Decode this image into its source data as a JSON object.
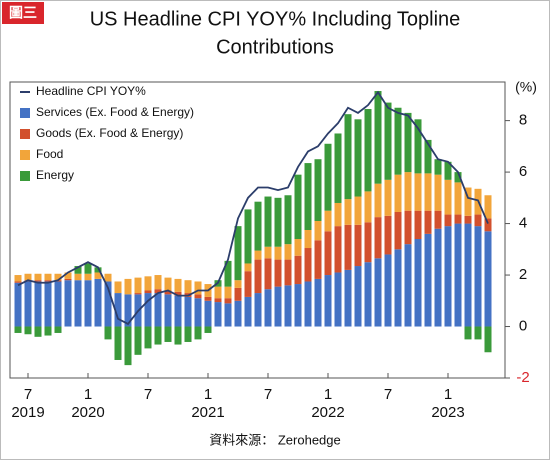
{
  "badge": "圖三",
  "source": "資料來源： Zerohedge",
  "chart_data": {
    "type": "stacked_bar_line",
    "title": [
      "US Headline CPI YOY% Including Topline",
      "Contributions"
    ],
    "y_unit_label": "(%)",
    "categories": [
      null,
      "7",
      null,
      null,
      null,
      null,
      null,
      "1",
      null,
      null,
      null,
      null,
      null,
      "7",
      null,
      null,
      null,
      null,
      null,
      "1",
      null,
      null,
      null,
      null,
      null,
      "7",
      null,
      null,
      null,
      null,
      null,
      "1",
      null,
      null,
      null,
      null,
      null,
      "7",
      null,
      null,
      null,
      null,
      null,
      "1",
      null,
      null,
      null,
      null
    ],
    "category_years": [
      null,
      "2019",
      null,
      null,
      null,
      null,
      null,
      "2020",
      null,
      null,
      null,
      null,
      null,
      null,
      null,
      null,
      null,
      null,
      null,
      "2021",
      null,
      null,
      null,
      null,
      null,
      null,
      null,
      null,
      null,
      null,
      null,
      "2022",
      null,
      null,
      null,
      null,
      null,
      null,
      null,
      null,
      null,
      null,
      null,
      "2023",
      null,
      null,
      null,
      null
    ],
    "ylim": [
      -2,
      9.5
    ],
    "yticks": [
      {
        "value": -2,
        "label": "-2"
      },
      0,
      2,
      4,
      6,
      8
    ],
    "line": {
      "name": "Headline CPI YOY%",
      "color": "#2c3e6b",
      "values": [
        1.6,
        1.8,
        1.7,
        1.7,
        1.8,
        2.1,
        2.3,
        2.5,
        2.3,
        1.5,
        0.3,
        0.1,
        0.6,
        1.0,
        1.3,
        1.4,
        1.2,
        1.2,
        1.4,
        1.4,
        1.7,
        2.6,
        4.2,
        5.0,
        5.4,
        5.4,
        5.3,
        5.4,
        6.2,
        6.8,
        7.0,
        7.5,
        7.9,
        8.5,
        8.3,
        8.6,
        9.1,
        8.5,
        8.3,
        8.2,
        7.7,
        7.1,
        6.5,
        6.4,
        6.0,
        5.0,
        4.9,
        4.0
      ]
    },
    "series": [
      {
        "name": "Services (Ex. Food & Energy)",
        "color": "#4472c4",
        "values": [
          1.7,
          1.75,
          1.75,
          1.75,
          1.75,
          1.8,
          1.8,
          1.8,
          1.85,
          1.75,
          1.3,
          1.25,
          1.25,
          1.3,
          1.3,
          1.25,
          1.2,
          1.15,
          1.1,
          1.0,
          0.95,
          0.9,
          1.0,
          1.15,
          1.3,
          1.45,
          1.55,
          1.6,
          1.65,
          1.75,
          1.85,
          2.0,
          2.1,
          2.2,
          2.35,
          2.5,
          2.65,
          2.8,
          3.0,
          3.2,
          3.4,
          3.6,
          3.8,
          3.9,
          4.0,
          4.0,
          3.9,
          3.7
        ]
      },
      {
        "name": "Goods (Ex. Food & Energy)",
        "color": "#d2502d",
        "values": [
          0.05,
          0.05,
          0.05,
          0.05,
          0.05,
          0.05,
          0.0,
          0.0,
          0.0,
          0.0,
          0.0,
          0.0,
          0.05,
          0.1,
          0.15,
          0.15,
          0.15,
          0.15,
          0.15,
          0.15,
          0.15,
          0.2,
          0.5,
          1.0,
          1.3,
          1.2,
          1.05,
          1.0,
          1.1,
          1.3,
          1.5,
          1.7,
          1.8,
          1.75,
          1.6,
          1.55,
          1.6,
          1.5,
          1.45,
          1.3,
          1.1,
          0.9,
          0.7,
          0.45,
          0.35,
          0.3,
          0.45,
          0.5
        ]
      },
      {
        "name": "Food",
        "color": "#f2a53a",
        "values": [
          0.25,
          0.25,
          0.25,
          0.25,
          0.25,
          0.25,
          0.25,
          0.25,
          0.25,
          0.3,
          0.45,
          0.6,
          0.6,
          0.55,
          0.55,
          0.5,
          0.5,
          0.5,
          0.5,
          0.5,
          0.45,
          0.45,
          0.3,
          0.3,
          0.35,
          0.45,
          0.5,
          0.6,
          0.65,
          0.7,
          0.75,
          0.8,
          0.9,
          1.0,
          1.1,
          1.2,
          1.3,
          1.4,
          1.45,
          1.5,
          1.45,
          1.45,
          1.4,
          1.35,
          1.25,
          1.1,
          1.0,
          0.9
        ]
      },
      {
        "name": "Energy",
        "color": "#3a9a3a",
        "values": [
          -0.25,
          -0.3,
          -0.4,
          -0.35,
          -0.25,
          0.0,
          0.3,
          0.4,
          0.2,
          -0.5,
          -1.3,
          -1.5,
          -1.1,
          -0.85,
          -0.7,
          -0.6,
          -0.7,
          -0.6,
          -0.5,
          -0.25,
          0.25,
          1.0,
          2.1,
          2.1,
          1.9,
          1.95,
          1.9,
          1.9,
          2.5,
          2.6,
          2.4,
          2.6,
          2.7,
          3.3,
          3.0,
          3.2,
          3.6,
          3.0,
          2.6,
          2.3,
          2.1,
          1.3,
          0.6,
          0.7,
          0.4,
          -0.5,
          -0.5,
          -1.0
        ]
      }
    ]
  }
}
